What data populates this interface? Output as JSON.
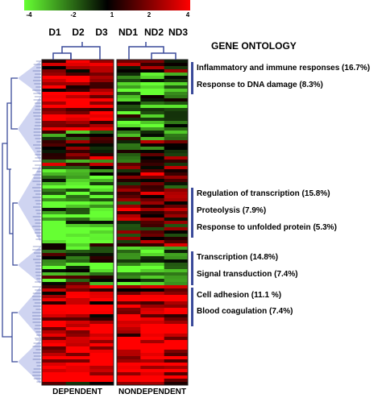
{
  "color_scale": {
    "ticks": [
      "-4",
      "-2",
      "1",
      "2",
      "4"
    ],
    "tick_values": [
      -4,
      -2,
      1,
      2,
      4
    ],
    "low_color": "#66ff33",
    "mid_color": "#000000",
    "high_color": "#ff0000"
  },
  "columns": {
    "dependent": [
      "D1",
      "D2",
      "D3"
    ],
    "nondependent": [
      "ND1",
      "ND2",
      "ND3"
    ]
  },
  "group_labels": {
    "dependent": "DEPENDENT",
    "nondependent": "NONDEPENDENT"
  },
  "gene_ontology": {
    "title": "GENE ONTOLOGY",
    "clusters": [
      {
        "terms": [
          "Inflammatory and immune responses  (16.7%)",
          "Response to DNA damage (8.3%)"
        ]
      },
      {
        "terms": [
          "Regulation of transcription (15.8%)",
          "Proteolysis (7.9%)",
          "Response to unfolded protein (5.3%)"
        ]
      },
      {
        "terms": [
          "Transcription (14.8%)",
          "Signal transduction (7.4%)"
        ]
      },
      {
        "terms": [
          "Cell adhesion (11.1 %)",
          "Blood coagulation (7.4%)"
        ]
      }
    ]
  },
  "colors": {
    "dendrogram": "#3a4a9a",
    "dendrogram_fill": "#c7ccef",
    "bracket": "#3a4a9a"
  }
}
